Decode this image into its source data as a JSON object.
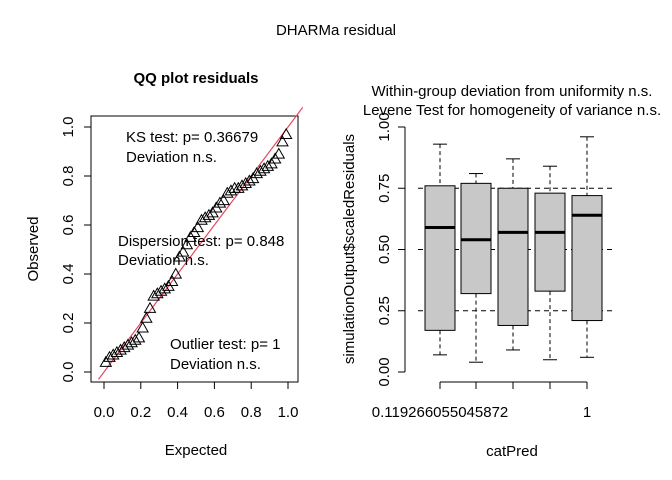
{
  "page": {
    "title": "DHARMa residual"
  },
  "chart_data": [
    {
      "type": "scatter",
      "title": "QQ plot residuals",
      "xlabel": "Expected",
      "ylabel": "Observed",
      "xlim": [
        0,
        1
      ],
      "ylim": [
        0,
        1
      ],
      "xticks": [
        "0.0",
        "0.2",
        "0.4",
        "0.6",
        "0.8",
        "1.0"
      ],
      "yticks": [
        "0.0",
        "0.2",
        "0.4",
        "0.6",
        "0.8",
        "1.0"
      ],
      "reference_line": {
        "slope": 1,
        "intercept": 0,
        "color": "#e8475f"
      },
      "annotations": {
        "ks_test": "KS test: p= 0.36679",
        "ks_deviation": "Deviation  n.s.",
        "dispersion_test": "Dispersion test: p= 0.848",
        "dispersion_deviation": "Deviation  n.s.",
        "outlier_test": "Outlier test: p= 1",
        "outlier_deviation": "Deviation  n.s."
      },
      "marker": "open-triangle",
      "points": [
        [
          0.01,
          0.04
        ],
        [
          0.03,
          0.06
        ],
        [
          0.05,
          0.07
        ],
        [
          0.07,
          0.08
        ],
        [
          0.09,
          0.09
        ],
        [
          0.11,
          0.1
        ],
        [
          0.13,
          0.11
        ],
        [
          0.15,
          0.12
        ],
        [
          0.17,
          0.13
        ],
        [
          0.19,
          0.14
        ],
        [
          0.21,
          0.18
        ],
        [
          0.23,
          0.22
        ],
        [
          0.25,
          0.26
        ],
        [
          0.27,
          0.31
        ],
        [
          0.29,
          0.32
        ],
        [
          0.31,
          0.33
        ],
        [
          0.33,
          0.34
        ],
        [
          0.35,
          0.35
        ],
        [
          0.37,
          0.37
        ],
        [
          0.39,
          0.4
        ],
        [
          0.41,
          0.47
        ],
        [
          0.43,
          0.49
        ],
        [
          0.45,
          0.52
        ],
        [
          0.47,
          0.55
        ],
        [
          0.49,
          0.57
        ],
        [
          0.51,
          0.59
        ],
        [
          0.53,
          0.62
        ],
        [
          0.55,
          0.63
        ],
        [
          0.57,
          0.64
        ],
        [
          0.59,
          0.65
        ],
        [
          0.61,
          0.67
        ],
        [
          0.63,
          0.69
        ],
        [
          0.65,
          0.7
        ],
        [
          0.67,
          0.73
        ],
        [
          0.69,
          0.74
        ],
        [
          0.71,
          0.75
        ],
        [
          0.73,
          0.75
        ],
        [
          0.75,
          0.76
        ],
        [
          0.77,
          0.77
        ],
        [
          0.79,
          0.78
        ],
        [
          0.81,
          0.79
        ],
        [
          0.83,
          0.81
        ],
        [
          0.85,
          0.82
        ],
        [
          0.87,
          0.83
        ],
        [
          0.89,
          0.84
        ],
        [
          0.91,
          0.85
        ],
        [
          0.93,
          0.87
        ],
        [
          0.95,
          0.89
        ],
        [
          0.97,
          0.94
        ],
        [
          0.99,
          0.97
        ]
      ]
    },
    {
      "type": "boxplot",
      "title_line1": "Within-group deviation from uniformity n.s.",
      "title_line2": "Levene Test for homogeneity of variance n.s.",
      "xlabel": "catPred",
      "ylabel": "simulationOutput$scaledResiduals",
      "ylim": [
        0,
        1
      ],
      "yticks": [
        "0.00",
        "0.25",
        "0.50",
        "0.75",
        "1.00"
      ],
      "xtick_labels": [
        "0.119266055045872",
        "1"
      ],
      "reference_lines": [
        0.25,
        0.5,
        0.75
      ],
      "box_color": "#c8c8c8",
      "boxes": [
        {
          "min": 0.07,
          "q1": 0.17,
          "median": 0.59,
          "q3": 0.76,
          "max": 0.93
        },
        {
          "min": 0.04,
          "q1": 0.32,
          "median": 0.54,
          "q3": 0.77,
          "max": 0.81
        },
        {
          "min": 0.09,
          "q1": 0.19,
          "median": 0.57,
          "q3": 0.75,
          "max": 0.87
        },
        {
          "min": 0.05,
          "q1": 0.33,
          "median": 0.57,
          "q3": 0.73,
          "max": 0.84
        },
        {
          "min": 0.06,
          "q1": 0.21,
          "median": 0.64,
          "q3": 0.72,
          "max": 0.96
        }
      ]
    }
  ]
}
